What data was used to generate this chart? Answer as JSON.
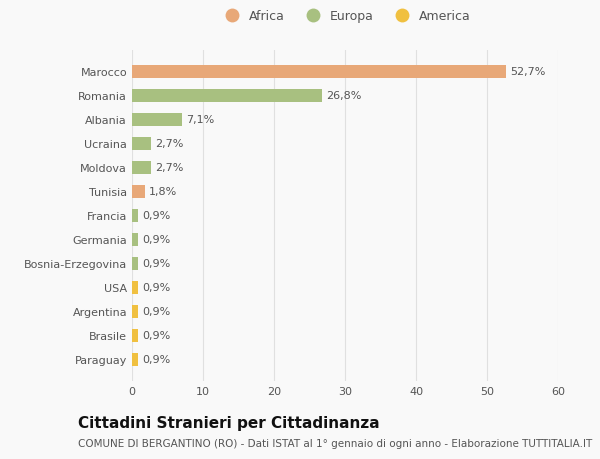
{
  "categories": [
    "Paraguay",
    "Brasile",
    "Argentina",
    "USA",
    "Bosnia-Erzegovina",
    "Germania",
    "Francia",
    "Tunisia",
    "Moldova",
    "Ucraina",
    "Albania",
    "Romania",
    "Marocco"
  ],
  "values": [
    0.9,
    0.9,
    0.9,
    0.9,
    0.9,
    0.9,
    0.9,
    1.8,
    2.7,
    2.7,
    7.1,
    26.8,
    52.7
  ],
  "labels": [
    "0,9%",
    "0,9%",
    "0,9%",
    "0,9%",
    "0,9%",
    "0,9%",
    "0,9%",
    "1,8%",
    "2,7%",
    "2,7%",
    "7,1%",
    "26,8%",
    "52,7%"
  ],
  "colors": [
    "#f0c040",
    "#f0c040",
    "#f0c040",
    "#f0c040",
    "#a8c080",
    "#a8c080",
    "#a8c080",
    "#e8a878",
    "#a8c080",
    "#a8c080",
    "#a8c080",
    "#a8c080",
    "#e8a878"
  ],
  "legend": [
    {
      "label": "Africa",
      "color": "#e8a878"
    },
    {
      "label": "Europa",
      "color": "#a8c080"
    },
    {
      "label": "America",
      "color": "#f0c040"
    }
  ],
  "title": "Cittadini Stranieri per Cittadinanza",
  "subtitle": "COMUNE DI BERGANTINO (RO) - Dati ISTAT al 1° gennaio di ogni anno - Elaborazione TUTTITALIA.IT",
  "xlim": [
    0,
    60
  ],
  "xticks": [
    0,
    10,
    20,
    30,
    40,
    50,
    60
  ],
  "background_color": "#f9f9f9",
  "grid_color": "#e0e0e0",
  "bar_height": 0.55,
  "title_fontsize": 11,
  "subtitle_fontsize": 7.5,
  "label_fontsize": 8,
  "tick_fontsize": 8,
  "legend_fontsize": 9
}
